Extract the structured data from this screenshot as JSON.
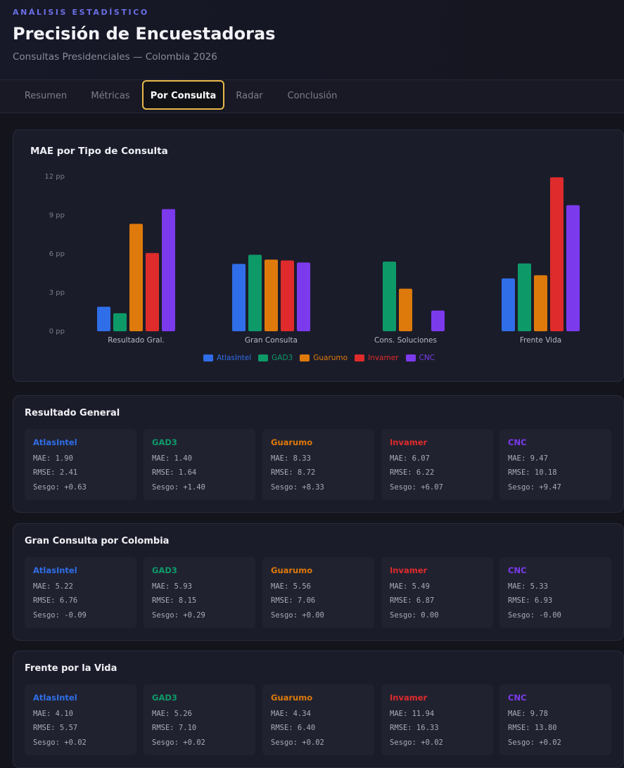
{
  "header": {
    "eyebrow": "ANÁLISIS ESTADÍSTICO",
    "title": "Precisión de Encuestadoras",
    "subtitle": "Consultas Presidenciales — Colombia 2026"
  },
  "tabs": [
    {
      "label": "Resumen",
      "active": false
    },
    {
      "label": "Métricas",
      "active": false
    },
    {
      "label": "Por Consulta",
      "active": true
    },
    {
      "label": "Radar",
      "active": false
    },
    {
      "label": "Conclusión",
      "active": false
    }
  ],
  "chart_data": {
    "type": "bar",
    "title": "MAE por Tipo de Consulta",
    "categories": [
      "Resultado Gral.",
      "Gran Consulta",
      "Cons. Soluciones",
      "Frente Vida"
    ],
    "ylim": [
      0,
      12
    ],
    "yticks": [
      0,
      3,
      6,
      9,
      12
    ],
    "ytick_labels": [
      "0 pp",
      "3 pp",
      "6 pp",
      "9 pp",
      "12 pp"
    ],
    "legend_position": "bottom",
    "grid": false,
    "series": [
      {
        "name": "AtlasIntel",
        "color": "#2f6ee8",
        "values": [
          1.9,
          5.22,
          null,
          4.1
        ]
      },
      {
        "name": "GAD3",
        "color": "#0d9a68",
        "values": [
          1.4,
          5.93,
          5.4,
          5.26
        ]
      },
      {
        "name": "Guarumo",
        "color": "#de7a0b",
        "values": [
          8.33,
          5.56,
          3.3,
          4.34
        ]
      },
      {
        "name": "Invamer",
        "color": "#df2b2b",
        "values": [
          6.07,
          5.49,
          null,
          11.94
        ]
      },
      {
        "name": "CNC",
        "color": "#7c3aed",
        "values": [
          9.47,
          5.33,
          1.6,
          9.78
        ]
      }
    ]
  },
  "sections": [
    {
      "title": "Resultado General",
      "stats": [
        {
          "name": "AtlasIntel",
          "mae": "MAE: 1.90",
          "rmse": "RMSE: 2.41",
          "sesgo": "Sesgo: +0.63"
        },
        {
          "name": "GAD3",
          "mae": "MAE: 1.40",
          "rmse": "RMSE: 1.64",
          "sesgo": "Sesgo: +1.40"
        },
        {
          "name": "Guarumo",
          "mae": "MAE: 8.33",
          "rmse": "RMSE: 8.72",
          "sesgo": "Sesgo: +8.33"
        },
        {
          "name": "Invamer",
          "mae": "MAE: 6.07",
          "rmse": "RMSE: 6.22",
          "sesgo": "Sesgo: +6.07"
        },
        {
          "name": "CNC",
          "mae": "MAE: 9.47",
          "rmse": "RMSE: 10.18",
          "sesgo": "Sesgo: +9.47"
        }
      ]
    },
    {
      "title": "Gran Consulta por Colombia",
      "stats": [
        {
          "name": "AtlasIntel",
          "mae": "MAE: 5.22",
          "rmse": "RMSE: 6.76",
          "sesgo": "Sesgo: -0.09"
        },
        {
          "name": "GAD3",
          "mae": "MAE: 5.93",
          "rmse": "RMSE: 8.15",
          "sesgo": "Sesgo: +0.29"
        },
        {
          "name": "Guarumo",
          "mae": "MAE: 5.56",
          "rmse": "RMSE: 7.06",
          "sesgo": "Sesgo: +0.00"
        },
        {
          "name": "Invamer",
          "mae": "MAE: 5.49",
          "rmse": "RMSE: 6.87",
          "sesgo": "Sesgo: 0.00"
        },
        {
          "name": "CNC",
          "mae": "MAE: 5.33",
          "rmse": "RMSE: 6.93",
          "sesgo": "Sesgo: -0.00"
        }
      ]
    },
    {
      "title": "Frente por la Vida",
      "stats": [
        {
          "name": "AtlasIntel",
          "mae": "MAE: 4.10",
          "rmse": "RMSE: 5.57",
          "sesgo": "Sesgo: +0.02"
        },
        {
          "name": "GAD3",
          "mae": "MAE: 5.26",
          "rmse": "RMSE: 7.10",
          "sesgo": "Sesgo: +0.02"
        },
        {
          "name": "Guarumo",
          "mae": "MAE: 4.34",
          "rmse": "RMSE: 6.40",
          "sesgo": "Sesgo: +0.02"
        },
        {
          "name": "Invamer",
          "mae": "MAE: 11.94",
          "rmse": "RMSE: 16.33",
          "sesgo": "Sesgo: +0.02"
        },
        {
          "name": "CNC",
          "mae": "MAE: 9.78",
          "rmse": "RMSE: 13.80",
          "sesgo": "Sesgo: +0.02"
        }
      ]
    }
  ]
}
